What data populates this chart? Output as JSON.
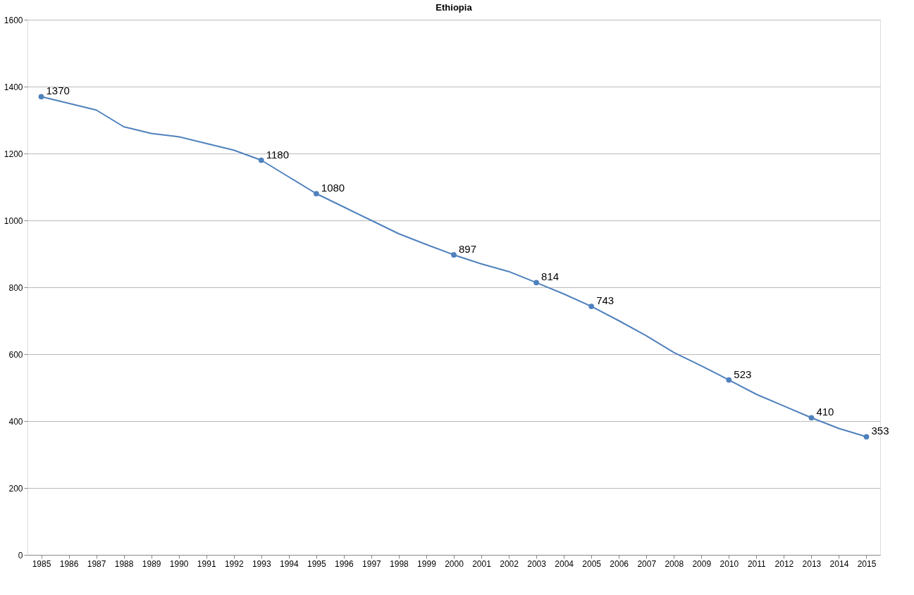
{
  "chart_data": {
    "type": "line",
    "title": "Ethiopia",
    "categories": [
      "1985",
      "1986",
      "1987",
      "1988",
      "1989",
      "1990",
      "1991",
      "1992",
      "1993",
      "1994",
      "1995",
      "1996",
      "1997",
      "1998",
      "1999",
      "2000",
      "2001",
      "2002",
      "2003",
      "2004",
      "2005",
      "2006",
      "2007",
      "2008",
      "2009",
      "2010",
      "2011",
      "2012",
      "2013",
      "2014",
      "2015"
    ],
    "series": [
      {
        "color": "#4f81bd",
        "values": [
          1370,
          1350,
          1330,
          1280,
          1260,
          1250,
          1230,
          1210,
          1180,
          1130,
          1080,
          1040,
          1000,
          960,
          928,
          897,
          870,
          847,
          814,
          780,
          743,
          700,
          655,
          605,
          565,
          523,
          480,
          445,
          410,
          378,
          353
        ],
        "value_labels": [
          "1370",
          null,
          null,
          null,
          null,
          null,
          null,
          null,
          "1180",
          null,
          "1080",
          null,
          null,
          null,
          null,
          "897",
          null,
          null,
          "814",
          null,
          "743",
          null,
          null,
          null,
          null,
          "523",
          null,
          null,
          "410",
          null,
          "353"
        ]
      }
    ],
    "ylim": [
      0,
      1600
    ],
    "yticks": [
      0,
      200,
      400,
      600,
      800,
      1000,
      1200,
      1400,
      1600
    ],
    "grid": "y",
    "line_style": "solid"
  }
}
